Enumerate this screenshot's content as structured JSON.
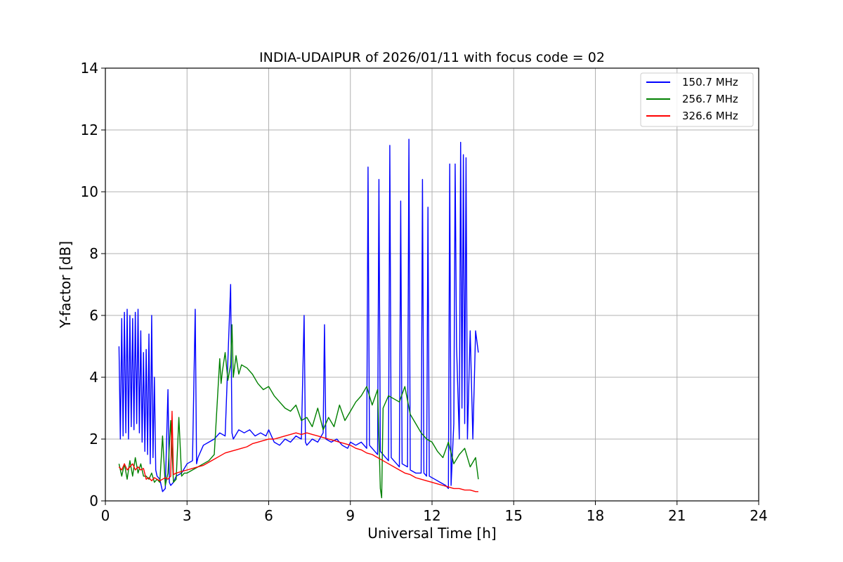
{
  "chart_data": {
    "type": "line",
    "title": "INDIA-UDAIPUR of 2026/01/11 with focus code = 02",
    "xlabel": "Universal Time [h]",
    "ylabel": "Y-factor [dB]",
    "xlim": [
      0,
      24
    ],
    "ylim": [
      0,
      14
    ],
    "xticks": [
      0,
      3,
      6,
      9,
      12,
      15,
      18,
      21,
      24
    ],
    "yticks": [
      0,
      2,
      4,
      6,
      8,
      10,
      12,
      14
    ],
    "grid": true,
    "legend_position": "top-right",
    "series": [
      {
        "name": "150.7 MHz",
        "color": "#0000ff",
        "x": [
          0.5,
          0.55,
          0.6,
          0.65,
          0.7,
          0.75,
          0.8,
          0.85,
          0.9,
          0.95,
          1.0,
          1.05,
          1.1,
          1.15,
          1.2,
          1.25,
          1.3,
          1.35,
          1.4,
          1.45,
          1.5,
          1.55,
          1.6,
          1.65,
          1.7,
          1.75,
          1.8,
          1.85,
          1.9,
          2.0,
          2.1,
          2.2,
          2.3,
          2.35,
          2.4,
          2.5,
          2.6,
          2.8,
          3.0,
          3.2,
          3.3,
          3.35,
          3.4,
          3.6,
          3.8,
          4.0,
          4.2,
          4.4,
          4.6,
          4.65,
          4.7,
          4.9,
          5.1,
          5.3,
          5.5,
          5.7,
          5.9,
          6.0,
          6.2,
          6.4,
          6.6,
          6.8,
          7.0,
          7.2,
          7.3,
          7.35,
          7.4,
          7.6,
          7.8,
          8.0,
          8.05,
          8.1,
          8.3,
          8.5,
          8.7,
          8.9,
          9.0,
          9.2,
          9.4,
          9.6,
          9.65,
          9.7,
          9.9,
          10.0,
          10.05,
          10.1,
          10.3,
          10.4,
          10.45,
          10.5,
          10.7,
          10.8,
          10.85,
          10.9,
          11.1,
          11.15,
          11.2,
          11.4,
          11.6,
          11.65,
          11.7,
          11.8,
          11.85,
          11.9,
          12.1,
          12.3,
          12.5,
          12.6,
          12.65,
          12.7,
          12.8,
          12.85,
          12.9,
          13.0,
          13.05,
          13.1,
          13.15,
          13.2,
          13.25,
          13.3,
          13.4,
          13.5,
          13.6,
          13.7
        ],
        "values": [
          5.0,
          2.0,
          5.9,
          2.1,
          6.1,
          2.2,
          6.2,
          2.0,
          6.0,
          2.4,
          5.9,
          2.3,
          6.1,
          2.5,
          6.2,
          2.2,
          5.5,
          1.9,
          4.8,
          1.6,
          4.9,
          1.5,
          5.4,
          1.2,
          6.0,
          1.4,
          4.0,
          1.0,
          0.8,
          0.7,
          0.3,
          0.4,
          3.6,
          0.6,
          0.5,
          0.6,
          0.8,
          0.9,
          1.2,
          1.3,
          6.2,
          1.2,
          1.4,
          1.8,
          1.9,
          2.0,
          2.2,
          2.1,
          7.0,
          2.2,
          2.0,
          2.3,
          2.2,
          2.3,
          2.1,
          2.2,
          2.1,
          2.3,
          1.9,
          1.8,
          2.0,
          1.9,
          2.1,
          2.0,
          6.0,
          1.9,
          1.8,
          2.0,
          1.9,
          2.2,
          5.7,
          2.0,
          1.9,
          2.0,
          1.8,
          1.7,
          1.9,
          1.8,
          1.9,
          1.7,
          10.8,
          1.8,
          1.6,
          1.5,
          10.4,
          1.6,
          1.4,
          1.3,
          11.5,
          1.4,
          1.2,
          1.1,
          9.7,
          1.2,
          1.1,
          11.7,
          1.0,
          0.9,
          0.9,
          10.4,
          0.9,
          0.8,
          9.5,
          0.8,
          0.7,
          0.6,
          0.5,
          0.4,
          10.9,
          0.5,
          2.5,
          10.9,
          5.0,
          2.0,
          11.6,
          3.0,
          11.2,
          2.5,
          11.1,
          2.0,
          5.5,
          2.0,
          5.5,
          4.8
        ]
      },
      {
        "name": "256.7 MHz",
        "color": "#008000",
        "x": [
          0.5,
          0.6,
          0.7,
          0.8,
          0.9,
          1.0,
          1.1,
          1.2,
          1.3,
          1.4,
          1.5,
          1.6,
          1.7,
          1.8,
          1.9,
          2.0,
          2.1,
          2.2,
          2.3,
          2.4,
          2.5,
          2.6,
          2.7,
          2.8,
          2.9,
          3.0,
          3.2,
          3.4,
          3.6,
          3.8,
          4.0,
          4.2,
          4.25,
          4.3,
          4.4,
          4.5,
          4.6,
          4.65,
          4.7,
          4.8,
          4.9,
          5.0,
          5.2,
          5.4,
          5.6,
          5.8,
          6.0,
          6.2,
          6.4,
          6.6,
          6.8,
          7.0,
          7.2,
          7.4,
          7.6,
          7.8,
          8.0,
          8.2,
          8.4,
          8.6,
          8.8,
          9.0,
          9.2,
          9.4,
          9.6,
          9.8,
          10.0,
          10.1,
          10.15,
          10.2,
          10.4,
          10.6,
          10.8,
          11.0,
          11.2,
          11.4,
          11.6,
          11.8,
          12.0,
          12.2,
          12.4,
          12.6,
          12.8,
          13.0,
          13.2,
          13.4,
          13.6,
          13.7
        ],
        "values": [
          1.2,
          0.8,
          1.2,
          0.7,
          1.3,
          0.8,
          1.4,
          0.9,
          1.2,
          0.8,
          0.8,
          0.7,
          0.9,
          0.6,
          0.7,
          0.6,
          2.1,
          0.5,
          0.9,
          2.6,
          0.6,
          0.7,
          2.7,
          0.8,
          0.9,
          0.9,
          1.0,
          1.1,
          1.2,
          1.3,
          1.5,
          4.6,
          3.8,
          4.2,
          4.8,
          3.9,
          4.4,
          5.7,
          4.0,
          4.7,
          4.1,
          4.4,
          4.3,
          4.1,
          3.8,
          3.6,
          3.7,
          3.4,
          3.2,
          3.0,
          2.9,
          3.1,
          2.6,
          2.7,
          2.4,
          3.0,
          2.3,
          2.7,
          2.4,
          3.1,
          2.6,
          2.9,
          3.2,
          3.4,
          3.7,
          3.1,
          3.6,
          0.4,
          0.1,
          3.0,
          3.4,
          3.3,
          3.2,
          3.7,
          2.8,
          2.5,
          2.2,
          2.0,
          1.9,
          1.6,
          1.4,
          1.9,
          1.2,
          1.5,
          1.7,
          1.1,
          1.4,
          0.7
        ]
      },
      {
        "name": "326.6 MHz",
        "color": "#ff0000",
        "x": [
          0.5,
          0.6,
          0.7,
          0.8,
          0.9,
          1.0,
          1.1,
          1.2,
          1.3,
          1.4,
          1.5,
          1.6,
          1.7,
          1.8,
          1.9,
          2.0,
          2.1,
          2.2,
          2.3,
          2.4,
          2.45,
          2.5,
          2.6,
          2.8,
          3.0,
          3.2,
          3.4,
          3.6,
          3.8,
          4.0,
          4.2,
          4.4,
          4.6,
          4.8,
          5.0,
          5.2,
          5.4,
          5.6,
          5.8,
          6.0,
          6.2,
          6.4,
          6.6,
          6.8,
          7.0,
          7.2,
          7.4,
          7.6,
          7.8,
          8.0,
          8.2,
          8.4,
          8.6,
          8.8,
          9.0,
          9.2,
          9.4,
          9.6,
          9.8,
          10.0,
          10.2,
          10.4,
          10.6,
          10.8,
          11.0,
          11.2,
          11.4,
          11.6,
          11.8,
          12.0,
          12.2,
          12.4,
          12.6,
          12.8,
          13.0,
          13.2,
          13.4,
          13.6,
          13.7
        ],
        "values": [
          1.1,
          1.0,
          1.2,
          1.0,
          1.1,
          1.2,
          1.0,
          1.1,
          1.0,
          1.05,
          0.7,
          0.75,
          0.65,
          0.75,
          0.7,
          0.65,
          0.7,
          0.75,
          0.7,
          0.8,
          2.9,
          0.85,
          0.9,
          0.95,
          1.0,
          1.05,
          1.1,
          1.15,
          1.25,
          1.35,
          1.45,
          1.55,
          1.6,
          1.65,
          1.7,
          1.75,
          1.85,
          1.9,
          1.95,
          2.0,
          2.0,
          2.05,
          2.1,
          2.15,
          2.2,
          2.15,
          2.2,
          2.15,
          2.1,
          2.05,
          2.0,
          1.95,
          1.9,
          1.85,
          1.8,
          1.7,
          1.65,
          1.55,
          1.5,
          1.4,
          1.3,
          1.2,
          1.1,
          1.0,
          0.9,
          0.85,
          0.75,
          0.7,
          0.65,
          0.6,
          0.55,
          0.5,
          0.45,
          0.4,
          0.4,
          0.35,
          0.35,
          0.3,
          0.3
        ]
      }
    ]
  }
}
